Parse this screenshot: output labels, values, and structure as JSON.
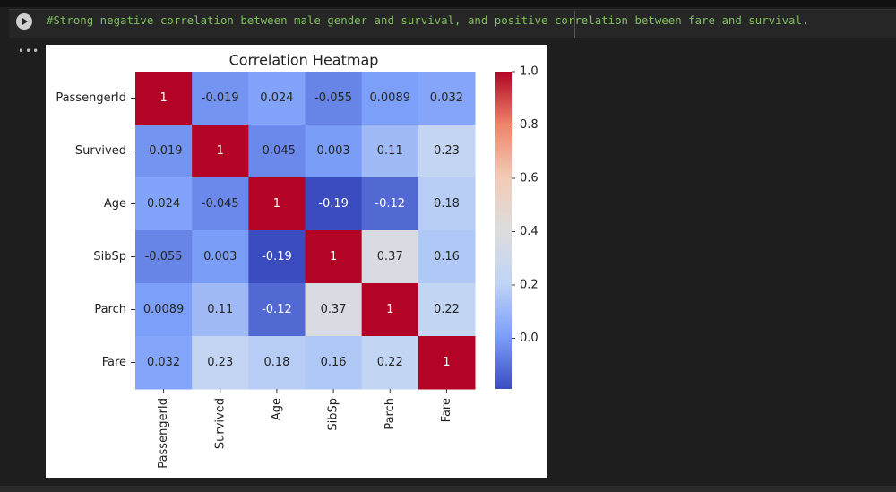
{
  "cell": {
    "code": "#Strong negative correlation between male gender and survival, and positive correlation between fare and survival."
  },
  "chart_data": {
    "type": "heatmap",
    "title": "Correlation Heatmap",
    "categories": [
      "PassengerId",
      "Survived",
      "Age",
      "SibSp",
      "Parch",
      "Fare"
    ],
    "values": [
      [
        1,
        -0.019,
        0.024,
        -0.055,
        0.0089,
        0.032
      ],
      [
        -0.019,
        1,
        -0.045,
        0.003,
        0.11,
        0.23
      ],
      [
        0.024,
        -0.045,
        1,
        -0.19,
        -0.12,
        0.18
      ],
      [
        -0.055,
        0.003,
        -0.19,
        1,
        0.37,
        0.16
      ],
      [
        0.0089,
        0.11,
        -0.12,
        0.37,
        1,
        0.22
      ],
      [
        0.032,
        0.23,
        0.18,
        0.16,
        0.22,
        1
      ]
    ],
    "colormap": "coolwarm",
    "clim": [
      -0.19,
      1
    ],
    "cticks": [
      {
        "value": 0,
        "label": "0.0"
      },
      0.2,
      0.4,
      0.6,
      0.8,
      {
        "value": 1,
        "label": "1.0"
      }
    ]
  }
}
